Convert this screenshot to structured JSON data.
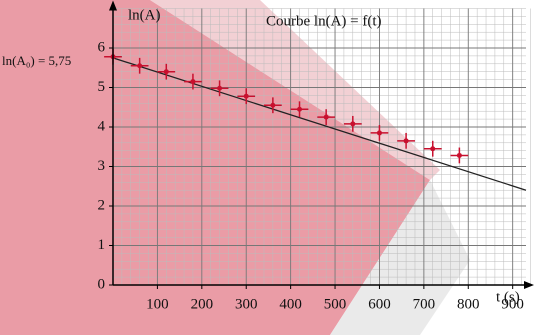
{
  "chart_data": {
    "type": "scatter",
    "title": "Courbe ln(A) = f(t)",
    "y_label": "ln(A)",
    "x_label": "t (s)",
    "annotation": "ln(A₀) = 5,75",
    "x": [
      0,
      60,
      120,
      180,
      240,
      300,
      360,
      420,
      480,
      540,
      600,
      660,
      720,
      780
    ],
    "values": [
      5.78,
      5.55,
      5.4,
      5.15,
      4.98,
      4.78,
      4.55,
      4.45,
      4.25,
      4.08,
      3.85,
      3.65,
      3.45,
      3.28
    ],
    "xerr": 20,
    "yerr": 0.2,
    "color": "#c8102e",
    "fit_line": {
      "x": [
        0,
        930
      ],
      "y": [
        5.75,
        2.4
      ],
      "color": "#222"
    },
    "xlim": [
      0,
      930
    ],
    "ylim": [
      0,
      7
    ],
    "xticks": [
      100,
      200,
      300,
      400,
      500,
      600,
      700,
      800,
      900
    ],
    "yticks": [
      0,
      1,
      2,
      3,
      4,
      5,
      6
    ],
    "xminor": 20,
    "yminor": 0.2,
    "grid": true
  }
}
